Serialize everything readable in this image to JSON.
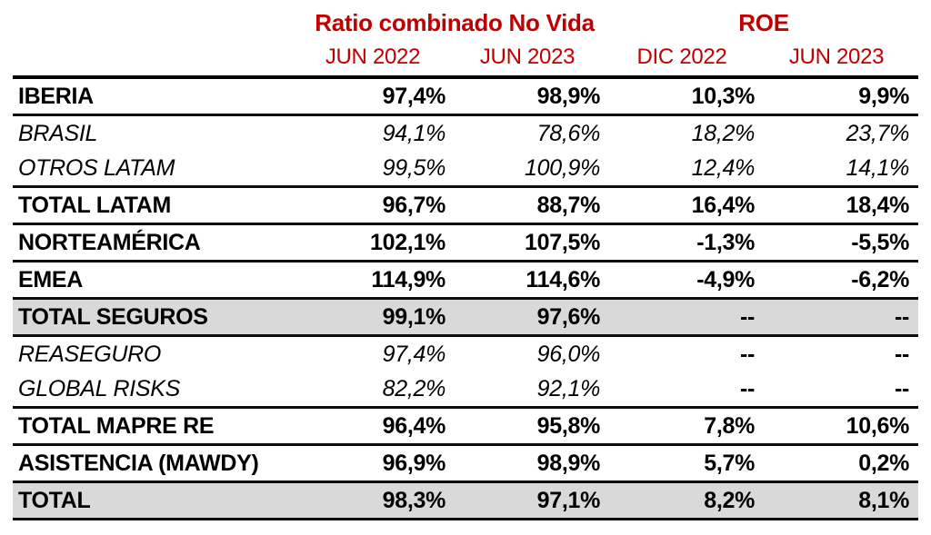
{
  "colors": {
    "header_red": "#c00000",
    "text_black": "#000000",
    "highlight_row_bg": "#d9d9d9",
    "rule_black": "#000000",
    "background": "#ffffff"
  },
  "chart_data": {
    "type": "table",
    "group_headers": [
      {
        "label": "Ratio combinado No Vida",
        "colspan": 2
      },
      {
        "label": "ROE",
        "colspan": 2
      }
    ],
    "column_headers": [
      "JUN 2022",
      "JUN 2023",
      "DIC 2022",
      "JUN 2023"
    ],
    "rows": [
      {
        "label": "IBERIA",
        "values": [
          "97,4%",
          "98,9%",
          "10,3%",
          "9,9%"
        ],
        "emphasis": "bold",
        "highlight": false
      },
      {
        "label": "BRASIL",
        "values": [
          "94,1%",
          "78,6%",
          "18,2%",
          "23,7%"
        ],
        "emphasis": "italic",
        "highlight": false
      },
      {
        "label": "OTROS LATAM",
        "values": [
          "99,5%",
          "100,9%",
          "12,4%",
          "14,1%"
        ],
        "emphasis": "italic",
        "highlight": false
      },
      {
        "label": "TOTAL LATAM",
        "values": [
          "96,7%",
          "88,7%",
          "16,4%",
          "18,4%"
        ],
        "emphasis": "bold",
        "highlight": false
      },
      {
        "label": "NORTEAMÉRICA",
        "values": [
          "102,1%",
          "107,5%",
          "-1,3%",
          "-5,5%"
        ],
        "emphasis": "bold",
        "highlight": false
      },
      {
        "label": "EMEA",
        "values": [
          "114,9%",
          "114,6%",
          "-4,9%",
          "-6,2%"
        ],
        "emphasis": "bold",
        "highlight": false
      },
      {
        "label": "TOTAL SEGUROS",
        "values": [
          "99,1%",
          "97,6%",
          "--",
          "--"
        ],
        "emphasis": "bold",
        "highlight": true
      },
      {
        "label": "REASEGURO",
        "values": [
          "97,4%",
          "96,0%",
          "--",
          "--"
        ],
        "emphasis": "italic",
        "highlight": false
      },
      {
        "label": "GLOBAL RISKS",
        "values": [
          "82,2%",
          "92,1%",
          "--",
          "--"
        ],
        "emphasis": "italic",
        "highlight": false
      },
      {
        "label": "TOTAL MAPRE RE",
        "values": [
          "96,4%",
          "95,8%",
          "7,8%",
          "10,6%"
        ],
        "emphasis": "bold",
        "highlight": false
      },
      {
        "label": "ASISTENCIA (MAWDY)",
        "values": [
          "96,9%",
          "98,9%",
          "5,7%",
          "0,2%"
        ],
        "emphasis": "bold",
        "highlight": false
      },
      {
        "label": "TOTAL",
        "values": [
          "98,3%",
          "97,1%",
          "8,2%",
          "8,1%"
        ],
        "emphasis": "bold",
        "highlight": true
      }
    ]
  }
}
